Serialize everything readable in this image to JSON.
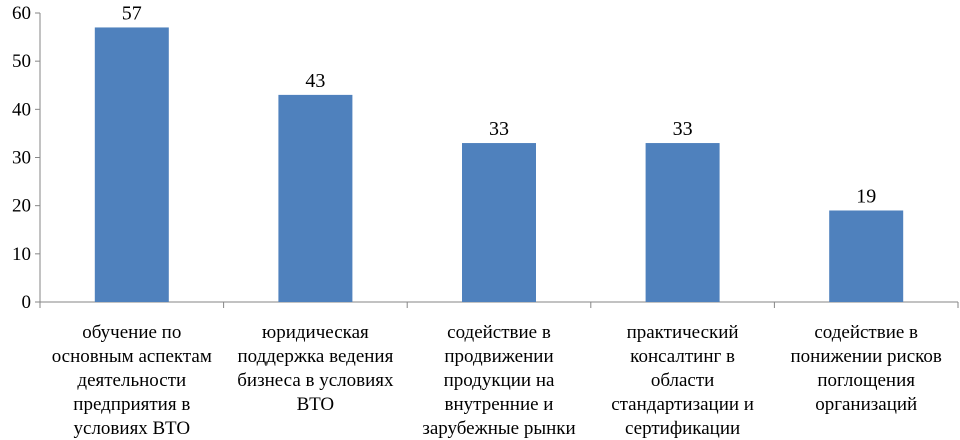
{
  "chart_data": {
    "type": "bar",
    "title": "",
    "xlabel": "",
    "ylabel": "",
    "ylim": [
      0,
      60
    ],
    "yticks": [
      0,
      10,
      20,
      30,
      40,
      50,
      60
    ],
    "grid": false,
    "legend": "none",
    "bar_color": "#4F81BD",
    "categories": [
      [
        "обучение по",
        "основным аспектам",
        "деятельности",
        "предприятия в",
        "условиях ВТО"
      ],
      [
        "юридическая",
        "поддержка ведения",
        "бизнеса в условиях",
        "ВТО"
      ],
      [
        "содействие в",
        "продвижении",
        "продукции на",
        "внутренние и",
        "зарубежные рынки"
      ],
      [
        "практический",
        "консалтинг в",
        "области",
        "стандартизации и",
        "сертификации"
      ],
      [
        "содействие в",
        "понижении рисков",
        "поглощения",
        "организаций"
      ]
    ],
    "values": [
      57,
      43,
      33,
      33,
      19
    ],
    "data_labels": [
      "57",
      "43",
      "33",
      "33",
      "19"
    ]
  }
}
